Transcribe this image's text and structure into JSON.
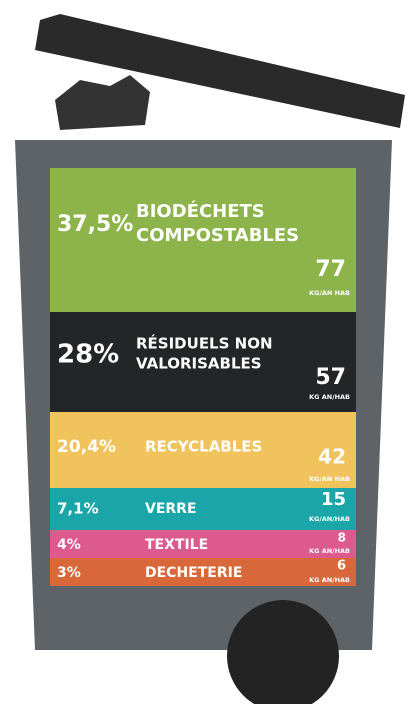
{
  "segments": [
    {
      "percent": "37,5%",
      "name_lines": [
        "BIODÉCHETS",
        "COMPOSTABLES"
      ],
      "value": "77",
      "unit": "KG/AN HAB",
      "color": "#8cb44a"
    },
    {
      "percent": "28%",
      "name_lines": [
        "RÉSIDUELS NON",
        "VALORISABLES"
      ],
      "value": "57",
      "unit": "KG AN/HAB",
      "color": "#232526"
    },
    {
      "percent": "20,4%",
      "name_lines": [
        "RECYCLABLES"
      ],
      "value": "42",
      "unit": "KG/AN HAB",
      "color": "#f0c35c"
    },
    {
      "percent": "7,1%",
      "name_lines": [
        "VERRE"
      ],
      "value": "15",
      "unit": "KG/AN/HAB",
      "color": "#1aa5a8"
    },
    {
      "percent": "4%",
      "name_lines": [
        "TEXTILE"
      ],
      "value": "8",
      "unit": "KG AN/HAB",
      "color": "#dc5a8e"
    },
    {
      "percent": "3%",
      "name_lines": [
        "DECHETERIE"
      ],
      "value": "6",
      "unit": "KG AN/HAB",
      "color": "#d8683a"
    }
  ]
}
